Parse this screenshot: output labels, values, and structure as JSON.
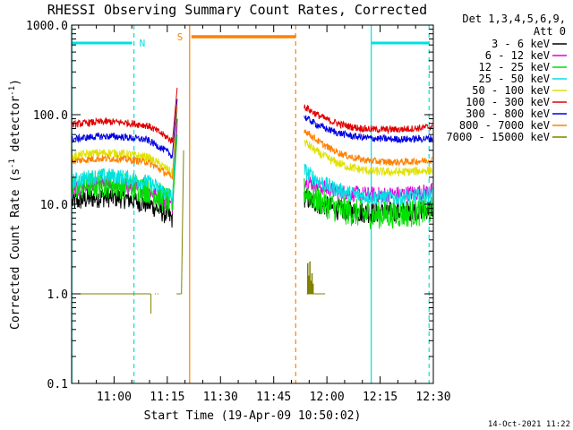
{
  "chart_data": {
    "type": "line",
    "title": "RHESSI Observing Summary Count Rates, Corrected",
    "xlabel": "Start Time (19-Apr-09 10:50:02)",
    "ylabel": "Corrected Count Rate (s⁻¹ detector⁻¹)",
    "ylabel_parts": {
      "main": "Corrected Count Rate (s",
      "sup1": "-1",
      "mid": " detector",
      "sup2": "-1",
      "end": ")"
    },
    "yscale": "log",
    "xlim_minutes": [
      10.8,
      12.5
    ],
    "ylim": [
      0.1,
      1000.0
    ],
    "x_ticks": [
      "11:00",
      "11:15",
      "11:30",
      "11:45",
      "12:00",
      "12:15",
      "12:30"
    ],
    "y_ticks": [
      "0.1",
      "1.0",
      "10.0",
      "100.0",
      "1000.0"
    ],
    "legend_header": [
      "Det 1,3,4,5,6,9,",
      "Att 0"
    ],
    "legend_position": "right",
    "series": [
      {
        "name": "3 - 6 keV",
        "color": "#000000"
      },
      {
        "name": "6 - 12 keV",
        "color": "#e100e1"
      },
      {
        "name": "12 - 25 keV",
        "color": "#00e100"
      },
      {
        "name": "25 - 50 keV",
        "color": "#00e1e1"
      },
      {
        "name": "50 - 100 keV",
        "color": "#e1e100"
      },
      {
        "name": "100 - 300 keV",
        "color": "#e10000"
      },
      {
        "name": "300 - 800 keV",
        "color": "#0000e1"
      },
      {
        "name": "800 - 7000 keV",
        "color": "#ff8000"
      },
      {
        "name": "7000 - 15000 keV",
        "color": "#808000"
      }
    ],
    "annotations": {
      "night": "N",
      "saa": "S"
    },
    "timestamp": "14-Oct-2021 11:22"
  }
}
